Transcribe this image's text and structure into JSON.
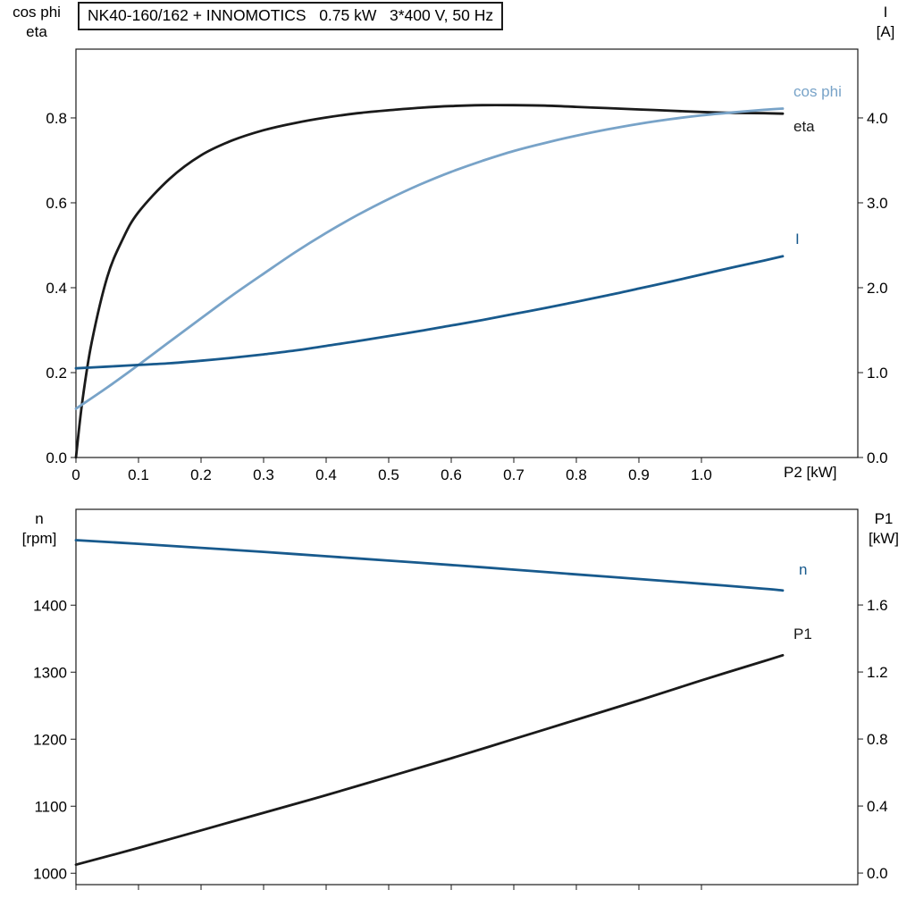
{
  "header": {
    "title": "NK40-160/162 + INNOMOTICS   0.75 kW   3*400 V, 50 Hz"
  },
  "colors": {
    "black": "#1a1a1a",
    "steel_blue": "#78a3c8",
    "dark_blue": "#185a8d",
    "axis": "#1a1a1a"
  },
  "chart_data": [
    {
      "id": "top",
      "type": "line",
      "x_axis": {
        "title": "P2 [kW]",
        "range": [
          0,
          1.25
        ],
        "ticks": [
          0,
          0.1,
          0.2,
          0.3,
          0.4,
          0.5,
          0.6,
          0.7,
          0.8,
          0.9,
          1.0
        ],
        "tick_labels": [
          "0",
          "0.1",
          "0.2",
          "0.3",
          "0.4",
          "0.5",
          "0.6",
          "0.7",
          "0.8",
          "0.9",
          "1.0"
        ]
      },
      "y_left": {
        "title_lines": [
          "cos phi",
          "eta"
        ],
        "range": [
          0,
          0.962
        ],
        "ticks": [
          0,
          0.2,
          0.4,
          0.6,
          0.8
        ],
        "tick_labels": [
          "0.0",
          "0.2",
          "0.4",
          "0.6",
          "0.8"
        ]
      },
      "y_right": {
        "title_lines": [
          "I",
          "[A]"
        ],
        "range": [
          0,
          4.81
        ],
        "ticks": [
          0,
          1.0,
          2.0,
          3.0,
          4.0
        ],
        "tick_labels": [
          "0.0",
          "1.0",
          "2.0",
          "3.0",
          "4.0"
        ]
      },
      "series": [
        {
          "name": "eta",
          "label": "eta",
          "axis": "left",
          "color": "#1a1a1a",
          "x": [
            0,
            0.01,
            0.025,
            0.05,
            0.075,
            0.1,
            0.15,
            0.2,
            0.25,
            0.3,
            0.35,
            0.4,
            0.45,
            0.5,
            0.55,
            0.6,
            0.65,
            0.7,
            0.75,
            0.8,
            0.85,
            0.9,
            0.95,
            1.0,
            1.05,
            1.1,
            1.13
          ],
          "y": [
            0,
            0.13,
            0.27,
            0.425,
            0.515,
            0.578,
            0.657,
            0.712,
            0.747,
            0.771,
            0.788,
            0.801,
            0.811,
            0.818,
            0.824,
            0.828,
            0.83,
            0.83,
            0.829,
            0.826,
            0.823,
            0.82,
            0.817,
            0.814,
            0.812,
            0.811,
            0.81
          ]
        },
        {
          "name": "cos phi",
          "label": "cos phi",
          "axis": "left",
          "color": "#78a3c8",
          "x": [
            0,
            0.05,
            0.1,
            0.15,
            0.2,
            0.25,
            0.3,
            0.35,
            0.4,
            0.45,
            0.5,
            0.55,
            0.6,
            0.65,
            0.7,
            0.75,
            0.8,
            0.85,
            0.9,
            0.95,
            1.0,
            1.05,
            1.1,
            1.13
          ],
          "y": [
            0.115,
            0.165,
            0.218,
            0.273,
            0.328,
            0.382,
            0.433,
            0.483,
            0.529,
            0.571,
            0.609,
            0.643,
            0.673,
            0.699,
            0.722,
            0.741,
            0.758,
            0.773,
            0.786,
            0.797,
            0.806,
            0.813,
            0.819,
            0.822
          ]
        },
        {
          "name": "I",
          "label": "I",
          "axis": "right",
          "color": "#185a8d",
          "x": [
            0,
            0.05,
            0.1,
            0.15,
            0.2,
            0.25,
            0.3,
            0.35,
            0.4,
            0.45,
            0.5,
            0.55,
            0.6,
            0.65,
            0.7,
            0.75,
            0.8,
            0.85,
            0.9,
            0.95,
            1.0,
            1.05,
            1.1,
            1.13
          ],
          "y": [
            1.05,
            1.07,
            1.09,
            1.11,
            1.14,
            1.175,
            1.215,
            1.26,
            1.315,
            1.37,
            1.43,
            1.49,
            1.555,
            1.62,
            1.69,
            1.76,
            1.835,
            1.91,
            1.99,
            2.07,
            2.155,
            2.24,
            2.32,
            2.37
          ]
        }
      ]
    },
    {
      "id": "bottom",
      "type": "line",
      "x_axis": {
        "range": [
          0,
          1.25
        ],
        "ticks": [
          0,
          0.1,
          0.2,
          0.3,
          0.4,
          0.5,
          0.6,
          0.7,
          0.8,
          0.9,
          1.0
        ],
        "tick_labels": []
      },
      "y_left": {
        "title_lines": [
          "n",
          "[rpm]"
        ],
        "range": [
          983,
          1543
        ],
        "ticks": [
          1000,
          1100,
          1200,
          1300,
          1400
        ],
        "tick_labels": [
          "1000",
          "1100",
          "1200",
          "1300",
          "1400"
        ]
      },
      "y_right": {
        "title_lines": [
          "P1",
          "[kW]"
        ],
        "range": [
          -0.069,
          2.171
        ],
        "ticks": [
          0,
          0.4,
          0.8,
          1.2,
          1.6
        ],
        "tick_labels": [
          "0.0",
          "0.4",
          "0.8",
          "1.2",
          "1.6"
        ]
      },
      "series": [
        {
          "name": "n",
          "label": "n",
          "axis": "left",
          "color": "#185a8d",
          "x": [
            0,
            0.1,
            0.2,
            0.3,
            0.4,
            0.5,
            0.6,
            0.7,
            0.8,
            0.9,
            1.0,
            1.1,
            1.13
          ],
          "y": [
            1497,
            1491.5,
            1485.5,
            1479.5,
            1473,
            1466.5,
            1460,
            1453,
            1446,
            1439,
            1432,
            1424.5,
            1422
          ]
        },
        {
          "name": "P1",
          "label": "P1",
          "axis": "right",
          "color": "#1a1a1a",
          "x": [
            0,
            0.1,
            0.2,
            0.3,
            0.4,
            0.5,
            0.6,
            0.7,
            0.8,
            0.9,
            1.0,
            1.1,
            1.13
          ],
          "y": [
            0.05,
            0.15,
            0.255,
            0.36,
            0.465,
            0.575,
            0.685,
            0.8,
            0.915,
            1.03,
            1.15,
            1.265,
            1.3
          ]
        }
      ]
    }
  ]
}
